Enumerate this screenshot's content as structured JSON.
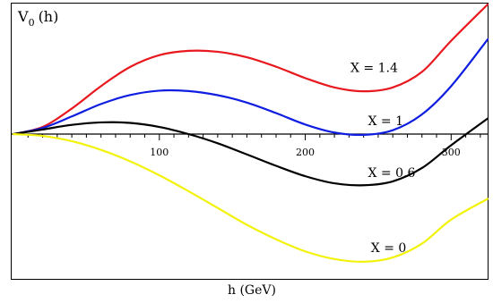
{
  "chart_data": {
    "type": "line",
    "title": "",
    "ylabel_main": "V",
    "ylabel_sub": "0",
    "ylabel_arg": "(h)",
    "xlabel": "h (GeV)",
    "xlim": [
      0,
      325
    ],
    "ylim": [
      -1.0,
      1.0
    ],
    "x_ticks": [
      {
        "value": 100,
        "label": "100"
      },
      {
        "value": 200,
        "label": "200"
      },
      {
        "value": 300,
        "label": "300"
      }
    ],
    "x_minor_step": 10,
    "grid": false,
    "series": [
      {
        "name": "X = 1.4",
        "color": "#e8191e",
        "x": [
          0,
          20,
          40,
          60,
          80,
          100,
          120,
          140,
          160,
          180,
          200,
          220,
          240,
          260,
          280,
          300,
          325
        ],
        "y": [
          0,
          0.055,
          0.197,
          0.37,
          0.518,
          0.609,
          0.642,
          0.635,
          0.593,
          0.52,
          0.432,
          0.36,
          0.33,
          0.36,
          0.48,
          0.72,
          1.0
        ]
      },
      {
        "name": "X = 1",
        "color": "#0f1ee0",
        "x": [
          0,
          20,
          40,
          60,
          80,
          100,
          120,
          140,
          160,
          180,
          200,
          220,
          240,
          260,
          280,
          300,
          325
        ],
        "y": [
          0,
          0.047,
          0.136,
          0.232,
          0.301,
          0.335,
          0.332,
          0.3,
          0.243,
          0.162,
          0.074,
          0.012,
          -0.006,
          0.03,
          0.152,
          0.37,
          0.73
        ]
      },
      {
        "name": "X = 0.6",
        "color": "#000000",
        "x": [
          0,
          20,
          40,
          60,
          80,
          100,
          120,
          140,
          160,
          180,
          200,
          220,
          240,
          260,
          280,
          300,
          325
        ],
        "y": [
          0,
          0.035,
          0.071,
          0.09,
          0.086,
          0.055,
          0.0,
          -0.071,
          -0.157,
          -0.245,
          -0.325,
          -0.38,
          -0.395,
          -0.365,
          -0.262,
          -0.086,
          0.12
        ]
      },
      {
        "name": "X = 0",
        "color": "#f2f20a",
        "x": [
          0,
          20,
          40,
          60,
          80,
          100,
          120,
          140,
          160,
          180,
          200,
          220,
          240,
          260,
          280,
          300,
          325
        ],
        "y": [
          0,
          -0.014,
          -0.055,
          -0.122,
          -0.21,
          -0.318,
          -0.441,
          -0.57,
          -0.7,
          -0.812,
          -0.905,
          -0.964,
          -0.985,
          -0.952,
          -0.845,
          -0.66,
          -0.5
        ]
      }
    ],
    "annotations": [
      {
        "text": "X = 1.4",
        "x": 231,
        "y": 0.48
      },
      {
        "text": "X = 1",
        "x": 243,
        "y": 0.07
      },
      {
        "text": "X = 0.6",
        "x": 243,
        "y": -0.33
      },
      {
        "text": "X = 0",
        "x": 245,
        "y": -0.91
      }
    ]
  }
}
